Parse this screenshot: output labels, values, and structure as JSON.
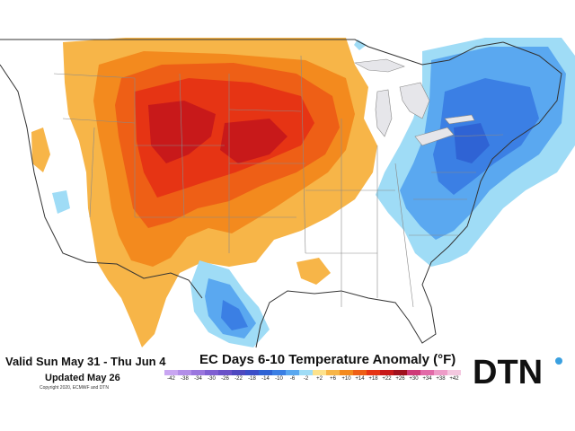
{
  "map": {
    "valid_period": "Valid Sun May 31 - Thu Jun 4",
    "updated": "Updated May 26",
    "copyright": "Copyright 2020, ECMWF and DTN",
    "title": "EC Days 6-10 Temperature Anomaly (°F)",
    "legend_labels": [
      "-42",
      "-38",
      "-34",
      "-30",
      "-26",
      "-22",
      "-18",
      "-14",
      "-10",
      "-6",
      "-2",
      "+2",
      "+6",
      "+10",
      "+14",
      "+18",
      "+22",
      "+26",
      "+30",
      "+34",
      "+38",
      "+42"
    ],
    "legend_colors": [
      "#c9a6f2",
      "#b28ee8",
      "#9a76de",
      "#7f60d2",
      "#6a52c8",
      "#4f49c0",
      "#3b4ec8",
      "#2f63d4",
      "#3b7fe4",
      "#5aa8f0",
      "#9fdcf6",
      "#fde28c",
      "#f7b548",
      "#f38a1e",
      "#ee5f16",
      "#e63414",
      "#c8191a",
      "#a0111e",
      "#ce3a78",
      "#e26aa8",
      "#ee9cc8",
      "#f4c8e0"
    ],
    "brand": "DTN",
    "colors": {
      "warm_1": "#f7b548",
      "warm_2": "#f38a1e",
      "warm_3": "#ee5f16",
      "warm_4": "#e63414",
      "cool_1": "#9fdcf6",
      "cool_2": "#5aa8f0",
      "cool_3": "#3b7fe4",
      "cool_4": "#2f63d4",
      "water": "#e6e6ea",
      "border": "#555555"
    }
  }
}
